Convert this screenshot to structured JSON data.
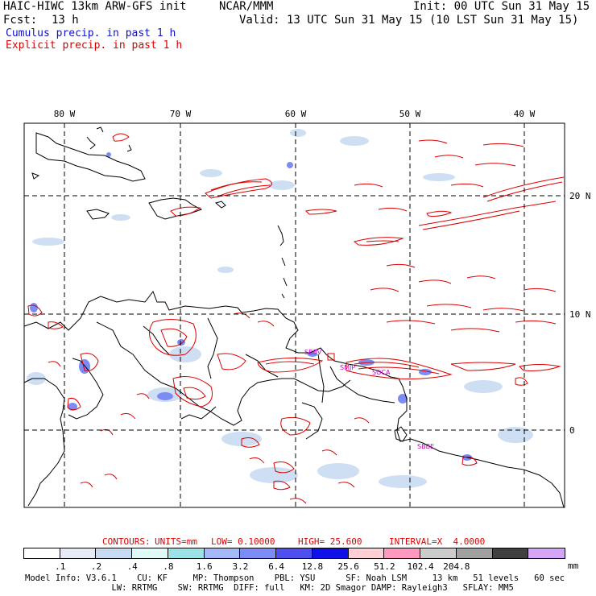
{
  "header": {
    "model": "HAIC-HIWC 13km ARW-GFS init",
    "org": "NCAR/MMM",
    "init": "Init: 00 UTC Sun 31 May 15",
    "fcst_label": "Fcst:",
    "fcst_value": "13 h",
    "valid": "Valid: 13 UTC Sun 31 May 15 (10 LST Sun 31 May 15)",
    "cumulus": "Cumulus precip. in past 1 h",
    "explicit": "Explicit precip. in past 1 h"
  },
  "colors": {
    "cumulus": "#1010c8",
    "explicit": "#dd0000",
    "station": "#c800c8",
    "contours_text": "#dd0000"
  },
  "map": {
    "lon_labels": [
      "80 W",
      "70 W",
      "60 W",
      "50 W",
      "40 W"
    ],
    "lat_labels": [
      "20 N",
      "10 N",
      "0"
    ],
    "stations": [
      "SBBV",
      "SMJP",
      "SOCA",
      "SBBE"
    ]
  },
  "contours_line": {
    "label": "CONTOURS:",
    "units": "UNITS=mm",
    "low": "LOW= 0.10000",
    "high": "HIGH= 25.600",
    "interval": "INTERVAL=X  4.0000"
  },
  "colorbar": {
    "unit": "mm",
    "colors": [
      "#ffffff",
      "#e6ecf7",
      "#c9dbf2",
      "#e0fbf7",
      "#9ce3e8",
      "#a5b8f7",
      "#7c8cf4",
      "#4f4ff0",
      "#1010e8",
      "#ffcfd6",
      "#ff99c0",
      "#cccccc",
      "#a0a0a0",
      "#404040",
      "#d5a6f7"
    ],
    "labels": [
      ".1",
      ".2",
      ".4",
      ".8",
      "1.6",
      "3.2",
      "6.4",
      "12.8",
      "25.6",
      "51.2",
      "102.4",
      "204.8"
    ]
  },
  "model_info": {
    "line1": "Model Info: V3.6.1    CU: KF     MP: Thompson    PBL: YSU      SF: Noah LSM     13 km   51 levels   60 sec",
    "line2": "                 LW: RRTMG    SW: RRTMG  DIFF: full   KM: 2D Smagor DAMP: Rayleigh3   SFLAY: MM5"
  }
}
